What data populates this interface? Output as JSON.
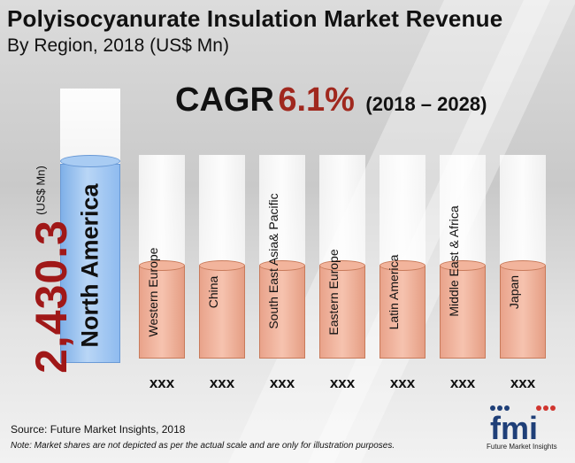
{
  "header": {
    "title": "Polyisocyanurate Insulation Market Revenue",
    "subtitle": "By Region, 2018 (US$ Mn)"
  },
  "cagr": {
    "label": "CAGR",
    "value": "6.1%",
    "period": "(2018 – 2028)"
  },
  "highlight": {
    "value": "2,430.3",
    "unit": "(US$ Mn)",
    "region": "North America"
  },
  "chart_data": {
    "type": "bar",
    "title": "Polyisocyanurate Insulation Market Revenue",
    "subtitle": "By Region, 2018 (US$ Mn)",
    "categories": [
      "North America",
      "Western Europe",
      "China",
      "South East Asia & Pacific",
      "Eastern Europe",
      "Latin America",
      "Middle East & Africa",
      "Japan"
    ],
    "value_labels": [
      "2,430.3",
      "xxx",
      "xxx",
      "xxx",
      "xxx",
      "xxx",
      "xxx",
      "xxx"
    ],
    "values": [
      2430.3,
      null,
      null,
      null,
      null,
      null,
      null,
      null
    ],
    "ylabel": "(US$ Mn)",
    "grid": false,
    "legend": "none"
  },
  "regions": [
    {
      "label": "Western Europe",
      "value_label": "xxx"
    },
    {
      "label": "China",
      "value_label": "xxx"
    },
    {
      "label": "South East Asia& Pacific",
      "value_label": "xxx"
    },
    {
      "label": "Eastern Europe",
      "value_label": "xxx"
    },
    {
      "label": "Latin America",
      "value_label": "xxx"
    },
    {
      "label": "Middle East & Africa",
      "value_label": "xxx"
    },
    {
      "label": "Japan",
      "value_label": "xxx"
    }
  ],
  "footer": {
    "source": "Source: Future Market Insights, 2018",
    "note": "Note: Market shares are not depicted as per the actual scale and are only for illustration purposes.",
    "logo_text": "Future Market Insights"
  },
  "colors": {
    "highlight_bar": "#a9ccf3",
    "region_bar": "#f2b49c",
    "cagr_value": "#a0281e",
    "big_value": "#a01818"
  }
}
